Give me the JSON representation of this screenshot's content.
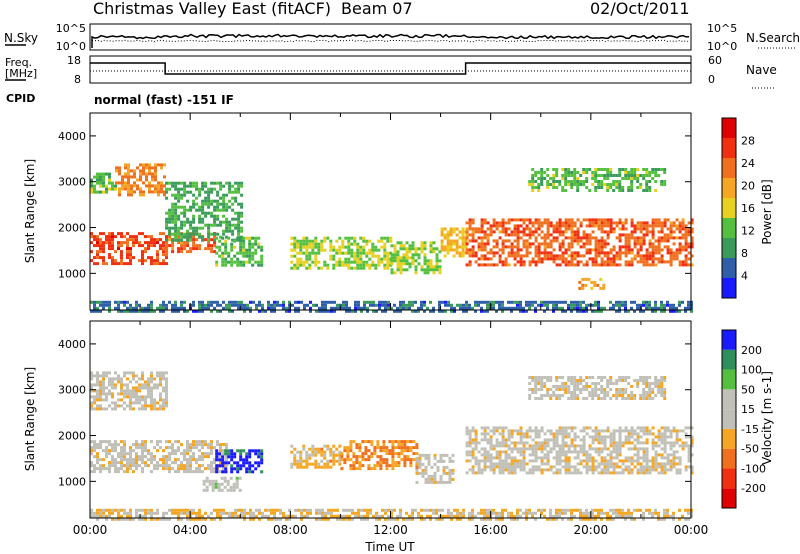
{
  "header": {
    "station": "Christmas Valley East (fitACF)",
    "beam": "Beam 07",
    "date": "02/Oct/2011"
  },
  "noise_panel": {
    "left_label": "N.Sky",
    "right_label": "N.Search",
    "left_ticks": [
      "10^5",
      "10^0"
    ],
    "right_ticks": [
      "10^5",
      "10^0"
    ]
  },
  "freq_panel": {
    "left_label_1": "Freq.",
    "left_label_2": "[MHz]",
    "right_label": "Nave",
    "left_ticks": [
      "18",
      "8"
    ],
    "right_ticks": [
      "60",
      "0"
    ]
  },
  "cpid": {
    "label": "CPID",
    "value": "normal (fast) -151 IF"
  },
  "colors": {
    "power_scale": [
      "#1a1aff",
      "#2f5fa8",
      "#3a9b5a",
      "#55c040",
      "#e8d020",
      "#f5a623",
      "#f07020",
      "#f03010",
      "#e00000"
    ],
    "velocity_scale": [
      "#e00000",
      "#f03010",
      "#f07020",
      "#f5a623",
      "#c0c0b8",
      "#c0c0b8",
      "#55c040",
      "#2f8f5a",
      "#1a1aff"
    ]
  },
  "chart_data": [
    {
      "type": "heatmap",
      "title": "Power",
      "xlabel": "",
      "ylabel": "Slant Range [km]",
      "yticks": [
        "1000",
        "2000",
        "3000",
        "4000"
      ],
      "ylim": [
        200,
        4500
      ],
      "xlim_hours": [
        0,
        24
      ],
      "colorbar_label": "Power [dB]",
      "colorbar_ticks": [
        "4",
        "8",
        "12",
        "16",
        "20",
        "24",
        "28"
      ],
      "colorbar_range": [
        0,
        32
      ],
      "regions": [
        {
          "t": [
            0.0,
            3.0
          ],
          "r": [
            1200,
            1900
          ],
          "v": 26
        },
        {
          "t": [
            1.0,
            3.0
          ],
          "r": [
            2700,
            3400
          ],
          "v": 22
        },
        {
          "t": [
            0.0,
            1.0
          ],
          "r": [
            2800,
            3200
          ],
          "v": 12
        },
        {
          "t": [
            3.0,
            5.0
          ],
          "r": [
            1500,
            1900
          ],
          "v": 24
        },
        {
          "t": [
            3.0,
            6.0
          ],
          "r": [
            1700,
            3000
          ],
          "v": 10
        },
        {
          "t": [
            5.0,
            6.8
          ],
          "r": [
            1200,
            1800
          ],
          "v": 12
        },
        {
          "t": [
            8.0,
            12.0
          ],
          "r": [
            1100,
            1800
          ],
          "v": 14
        },
        {
          "t": [
            12.0,
            14.0
          ],
          "r": [
            1000,
            1700
          ],
          "v": 14
        },
        {
          "t": [
            14.0,
            15.0
          ],
          "r": [
            1400,
            2000
          ],
          "v": 18
        },
        {
          "t": [
            15.0,
            24.0
          ],
          "r": [
            1200,
            2200
          ],
          "v": 24
        },
        {
          "t": [
            17.5,
            23.0
          ],
          "r": [
            2800,
            3300
          ],
          "v": 12
        },
        {
          "t": [
            19.5,
            20.5
          ],
          "r": [
            700,
            900
          ],
          "v": 20
        },
        {
          "t": [
            0.0,
            24.0
          ],
          "r": [
            200,
            400
          ],
          "v": 6
        }
      ]
    },
    {
      "type": "heatmap",
      "title": "Velocity",
      "xlabel": "Time UT",
      "ylabel": "Slant Range [km]",
      "xticks": [
        "00:00",
        "04:00",
        "08:00",
        "12:00",
        "16:00",
        "20:00",
        "00:00"
      ],
      "yticks": [
        "1000",
        "2000",
        "3000",
        "4000"
      ],
      "ylim": [
        200,
        4500
      ],
      "xlim_hours": [
        0,
        24
      ],
      "colorbar_label": "Velocity [m s-1]",
      "colorbar_ticks": [
        "-200",
        "-100",
        "-50",
        "-15",
        "15",
        "50",
        "100",
        "200"
      ],
      "colorbar_range": [
        -250,
        250
      ],
      "regions": [
        {
          "t": [
            0.0,
            5.5
          ],
          "r": [
            1200,
            1900
          ],
          "v": 0
        },
        {
          "t": [
            0.0,
            3.0
          ],
          "r": [
            2600,
            3400
          ],
          "v": 0
        },
        {
          "t": [
            5.0,
            6.8
          ],
          "r": [
            1200,
            1700
          ],
          "v": 220
        },
        {
          "t": [
            4.5,
            6.0
          ],
          "r": [
            800,
            1100
          ],
          "v": 40
        },
        {
          "t": [
            8.0,
            10.0
          ],
          "r": [
            1300,
            1800
          ],
          "v": -40
        },
        {
          "t": [
            10.0,
            13.0
          ],
          "r": [
            1300,
            1900
          ],
          "v": -80
        },
        {
          "t": [
            13.0,
            14.5
          ],
          "r": [
            1000,
            1600
          ],
          "v": 0
        },
        {
          "t": [
            15.0,
            24.0
          ],
          "r": [
            1200,
            2200
          ],
          "v": 0
        },
        {
          "t": [
            17.5,
            23.0
          ],
          "r": [
            2800,
            3300
          ],
          "v": 0
        },
        {
          "t": [
            0.0,
            24.0
          ],
          "r": [
            200,
            400
          ],
          "v": -30
        }
      ]
    }
  ]
}
